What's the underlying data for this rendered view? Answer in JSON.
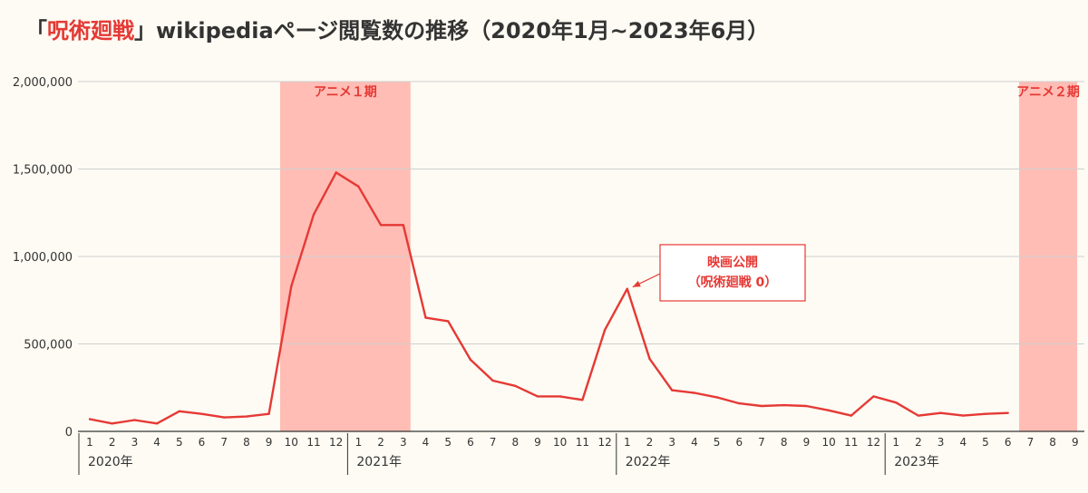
{
  "title": {
    "open_bracket": "「",
    "highlight": "呪術廻戦",
    "close_bracket": "」",
    "rest": "wikipediaページ閲覧数の推移（2020年1月~2023年6月）"
  },
  "colors": {
    "line": "#e53935",
    "shade": "#ffbdb5",
    "accent_text": "#e53935",
    "grid": "#cfcfcf",
    "axis": "#333333",
    "background": "#fdfbf3"
  },
  "chart_data": {
    "type": "line",
    "title": "「呪術廻戦」wikipediaページ閲覧数の推移（2020年1月~2023年6月）",
    "ylim": [
      0,
      2000000
    ],
    "yticks": [
      {
        "value": 0,
        "label": "0"
      },
      {
        "value": 500000,
        "label": "500,000"
      },
      {
        "value": 1000000,
        "label": "1,000,000"
      },
      {
        "value": 1500000,
        "label": "1,500,000"
      },
      {
        "value": 2000000,
        "label": "2,000,000"
      }
    ],
    "grid": true,
    "x_month_labels": [
      "1",
      "2",
      "3",
      "4",
      "5",
      "6",
      "7",
      "8",
      "9",
      "10",
      "11",
      "12",
      "1",
      "2",
      "3",
      "4",
      "5",
      "6",
      "7",
      "8",
      "9",
      "10",
      "11",
      "12",
      "1",
      "2",
      "3",
      "4",
      "5",
      "6",
      "7",
      "8",
      "9",
      "10",
      "11",
      "12",
      "1",
      "2",
      "3",
      "4",
      "5",
      "6",
      "7",
      "8",
      "9"
    ],
    "year_labels": [
      {
        "label": "2020年",
        "start_index": 0
      },
      {
        "label": "2021年",
        "start_index": 12
      },
      {
        "label": "2022年",
        "start_index": 24
      },
      {
        "label": "2023年",
        "start_index": 36
      }
    ],
    "series": [
      {
        "values": [
          70000,
          45000,
          65000,
          45000,
          115000,
          100000,
          80000,
          85000,
          100000,
          830000,
          1240000,
          1480000,
          1400000,
          1180000,
          1180000,
          650000,
          630000,
          410000,
          290000,
          260000,
          200000,
          200000,
          180000,
          580000,
          815000,
          415000,
          235000,
          220000,
          195000,
          160000,
          145000,
          150000,
          145000,
          120000,
          90000,
          200000,
          165000,
          90000,
          105000,
          90000,
          100000,
          105000
        ]
      }
    ],
    "shaded_regions": [
      {
        "label": "アニメ１期",
        "start_index": 9,
        "end_index": 14
      },
      {
        "label": "アニメ２期",
        "start_index": 42,
        "end_index": 44
      }
    ],
    "annotations": [
      {
        "lines": [
          "映画公開",
          "（呪術廻戦 0）"
        ],
        "point_index": 24
      }
    ]
  }
}
